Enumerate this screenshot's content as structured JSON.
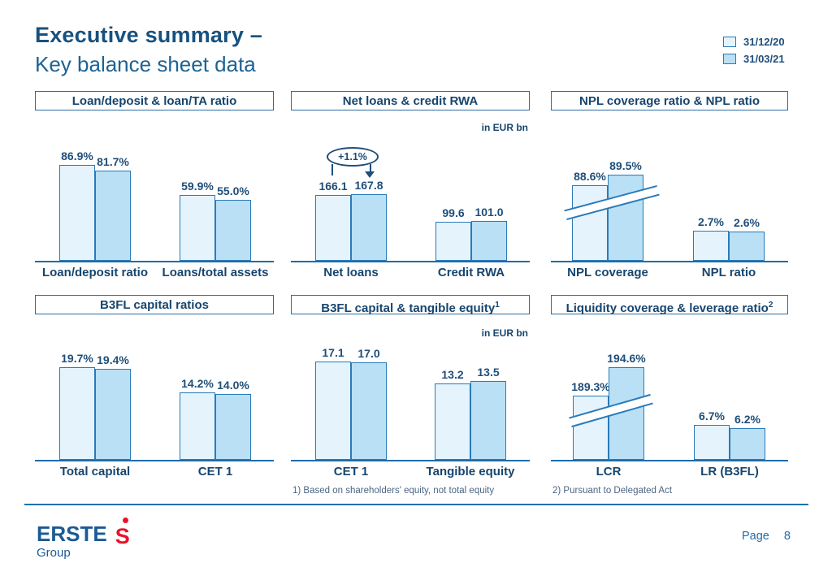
{
  "slide": {
    "title_line1": "Executive summary –",
    "title_line2": "Key balance sheet data",
    "page_label": "Page",
    "page_number": "8",
    "logo": {
      "brand": "ERSTE",
      "sub": "Group",
      "symbol": "S"
    }
  },
  "colors": {
    "accent_blue": "#1F6CAB",
    "bar_fill_prev": "#E4F3FC",
    "bar_fill_curr": "#B9E0F5",
    "bar_border": "#2A7AB8",
    "text_navy": "#1F4E79",
    "panel_title": "#17456E",
    "logo_red": "#E8132A"
  },
  "legend": {
    "position": "top-right",
    "items": [
      {
        "label": "31/12/20",
        "color": "#E4F3FC"
      },
      {
        "label": "31/03/21",
        "color": "#B9E0F5"
      }
    ]
  },
  "footnotes": [
    "1) Based on shareholders' equity, not total equity",
    "2) Pursuant to Delegated Act"
  ],
  "chart_data": [
    {
      "type": "bar",
      "title": "Loan/deposit & loan/TA ratio",
      "title_sup": "",
      "unit_note": "",
      "categories": [
        "Loan/deposit ratio",
        "Loans/total assets"
      ],
      "series": [
        {
          "name": "31/12/20",
          "values": [
            86.9,
            59.9
          ]
        },
        {
          "name": "31/03/21",
          "values": [
            81.7,
            55.0
          ]
        }
      ],
      "value_labels": [
        [
          "86.9%",
          "81.7%"
        ],
        [
          "59.9%",
          "55.0%"
        ]
      ],
      "axis_break": false,
      "annotation": ""
    },
    {
      "type": "bar",
      "title": "Net loans & credit RWA",
      "title_sup": "",
      "unit_note": "in EUR bn",
      "categories": [
        "Net loans",
        "Credit RWA"
      ],
      "series": [
        {
          "name": "31/12/20",
          "values": [
            166.1,
            99.6
          ]
        },
        {
          "name": "31/03/21",
          "values": [
            167.8,
            101.0
          ]
        }
      ],
      "value_labels": [
        [
          "166.1",
          "167.8"
        ],
        [
          "99.6",
          "101.0"
        ]
      ],
      "axis_break": false,
      "annotation": "+1.1%"
    },
    {
      "type": "bar",
      "title": "NPL coverage ratio & NPL ratio",
      "title_sup": "",
      "unit_note": "",
      "categories": [
        "NPL coverage",
        "NPL ratio"
      ],
      "series": [
        {
          "name": "31/12/20",
          "values": [
            88.6,
            2.7
          ]
        },
        {
          "name": "31/03/21",
          "values": [
            89.5,
            2.6
          ]
        }
      ],
      "value_labels": [
        [
          "88.6%",
          "89.5%"
        ],
        [
          "2.7%",
          "2.6%"
        ]
      ],
      "axis_break": true,
      "annotation": ""
    },
    {
      "type": "bar",
      "title": "B3FL capital ratios",
      "title_sup": "",
      "unit_note": "",
      "categories": [
        "Total capital",
        "CET 1"
      ],
      "series": [
        {
          "name": "31/12/20",
          "values": [
            19.7,
            14.2
          ]
        },
        {
          "name": "31/03/21",
          "values": [
            19.4,
            14.0
          ]
        }
      ],
      "value_labels": [
        [
          "19.7%",
          "19.4%"
        ],
        [
          "14.2%",
          "14.0%"
        ]
      ],
      "axis_break": false,
      "annotation": ""
    },
    {
      "type": "bar",
      "title": "B3FL capital & tangible equity",
      "title_sup": "1",
      "unit_note": "in EUR bn",
      "categories": [
        "CET 1",
        "Tangible equity"
      ],
      "series": [
        {
          "name": "31/12/20",
          "values": [
            17.1,
            13.2
          ]
        },
        {
          "name": "31/03/21",
          "values": [
            17.0,
            13.5
          ]
        }
      ],
      "value_labels": [
        [
          "17.1",
          "17.0"
        ],
        [
          "13.2",
          "13.5"
        ]
      ],
      "axis_break": false,
      "annotation": ""
    },
    {
      "type": "bar",
      "title": "Liquidity coverage & leverage ratio",
      "title_sup": "2",
      "unit_note": "",
      "categories": [
        "LCR",
        "LR (B3FL)"
      ],
      "series": [
        {
          "name": "31/12/20",
          "values": [
            189.3,
            6.7
          ]
        },
        {
          "name": "31/03/21",
          "values": [
            194.6,
            6.2
          ]
        }
      ],
      "value_labels": [
        [
          "189.3%",
          "194.6%"
        ],
        [
          "6.7%",
          "6.2%"
        ]
      ],
      "axis_break": true,
      "annotation": ""
    }
  ]
}
